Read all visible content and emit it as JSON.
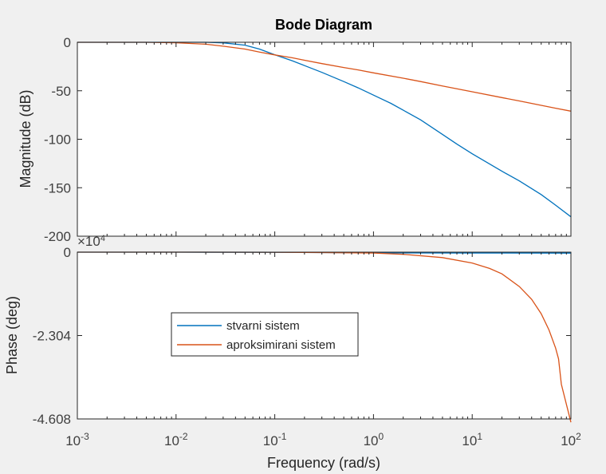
{
  "chart_data": {
    "type": "line",
    "title": "Bode Diagram",
    "xlabel": "Frequency  (rad/s)",
    "x_scale": "log",
    "xlim": [
      0.001,
      100
    ],
    "x_tick_labels": [
      {
        "base": "10",
        "exp": "-3"
      },
      {
        "base": "10",
        "exp": "-2"
      },
      {
        "base": "10",
        "exp": "-1"
      },
      {
        "base": "10",
        "exp": "0"
      },
      {
        "base": "10",
        "exp": "1"
      },
      {
        "base": "10",
        "exp": "2"
      }
    ],
    "grid": false,
    "legend_position": "inside phase plot, middle-left",
    "colors": {
      "series1": "#0072bd",
      "series2": "#d95319",
      "axis": "#262626",
      "background": "#f0f0f0"
    },
    "magnitude": {
      "ylabel": "Magnitude (dB)",
      "ylim": [
        -200,
        0
      ],
      "y_tick_labels": [
        "0",
        "-50",
        "-100",
        "-150",
        "-200"
      ],
      "series": [
        {
          "name": "stvarni sistem",
          "x": [
            0.001,
            0.005,
            0.01,
            0.02,
            0.03,
            0.05,
            0.07,
            0.1,
            0.15,
            0.2,
            0.3,
            0.5,
            0.7,
            1,
            1.5,
            2,
            3,
            5,
            7,
            10,
            20,
            30,
            50,
            70,
            100
          ],
          "y": [
            0,
            0,
            0,
            0,
            -0.6,
            -3,
            -7,
            -12.8,
            -19,
            -24,
            -31,
            -40.5,
            -47,
            -54.5,
            -63,
            -70,
            -80,
            -95,
            -105,
            -115,
            -133,
            -143,
            -157,
            -168,
            -180
          ]
        },
        {
          "name": "aproksimirani sistem",
          "x": [
            0.001,
            0.005,
            0.01,
            0.02,
            0.03,
            0.05,
            0.07,
            0.1,
            0.15,
            0.2,
            0.3,
            0.5,
            0.7,
            1,
            2,
            3,
            5,
            10,
            20,
            30,
            50,
            70,
            100
          ],
          "y": [
            0,
            0,
            -0.5,
            -2,
            -4,
            -7,
            -10,
            -13,
            -16,
            -18.5,
            -22,
            -26,
            -28.5,
            -31.5,
            -37,
            -40.5,
            -45,
            -51,
            -57,
            -60.5,
            -65,
            -68,
            -71
          ]
        }
      ]
    },
    "phase": {
      "ylabel": "Phase (deg)",
      "ylim": [
        -46080,
        0
      ],
      "y_tick_labels": [
        "0",
        "-2.304",
        "-4.608"
      ],
      "y_multiplier": {
        "base": "×10",
        "exp": "4"
      },
      "series": [
        {
          "name": "stvarni sistem",
          "x": [
            0.001,
            0.01,
            0.1,
            1,
            10,
            100
          ],
          "y": [
            0,
            -5,
            -50,
            -200,
            -250,
            -270
          ]
        },
        {
          "name": "aproksimirani sistem",
          "x": [
            0.001,
            0.01,
            0.1,
            0.3,
            1,
            2,
            5,
            10,
            15,
            20,
            30,
            40,
            50,
            60,
            70,
            75,
            80,
            100
          ],
          "y": [
            0,
            -3,
            -30,
            -100,
            -250,
            -600,
            -1500,
            -3000,
            -4500,
            -6000,
            -9500,
            -13000,
            -17000,
            -21500,
            -26500,
            -29500,
            -36500,
            -47000
          ]
        }
      ]
    }
  }
}
